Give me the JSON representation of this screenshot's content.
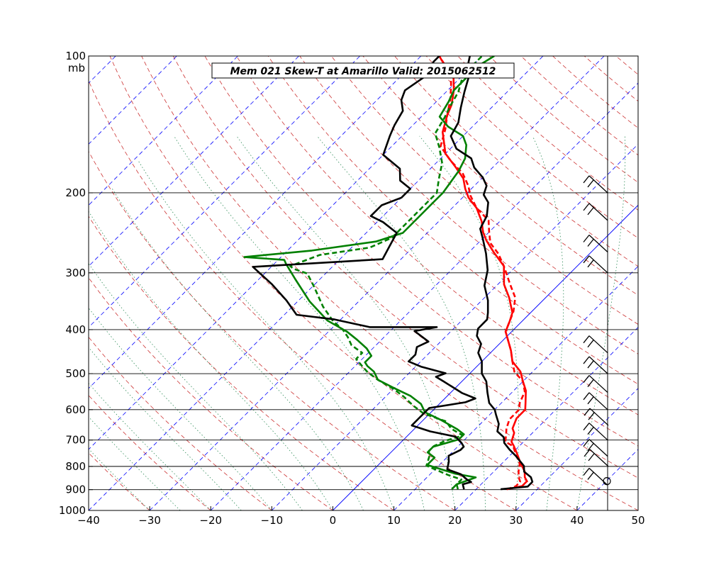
{
  "chart_data": {
    "type": "line",
    "title": "Mem 021  Skew-T at Amarillo   Valid: 2015062512",
    "pressure_unit": "mb",
    "xlabel": "",
    "ylabel": "",
    "x_ticks": [
      "−40",
      "−30",
      "−20",
      "−10",
      "0",
      "10",
      "20",
      "30",
      "40",
      "50"
    ],
    "y_ticks": [
      {
        "p": 100,
        "label": "100"
      },
      {
        "p": 200,
        "label": "200"
      },
      {
        "p": 300,
        "label": "300"
      },
      {
        "p": 400,
        "label": "400"
      },
      {
        "p": 500,
        "label": "500"
      },
      {
        "p": 600,
        "label": "600"
      },
      {
        "p": 700,
        "label": "700"
      },
      {
        "p": 800,
        "label": "800"
      },
      {
        "p": 900,
        "label": "900"
      },
      {
        "p": 1000,
        "label": "1000"
      }
    ],
    "xlim": [
      -40,
      50
    ],
    "ylim_pressure": [
      1000,
      100
    ],
    "y_scale": "log-pressure",
    "skew": "temperature skewed 45 degrees",
    "grid": "horizontal isobars",
    "colors": {
      "temperature": "#ff0000",
      "dewpoint": "#008000",
      "profile": "#000000",
      "dry_adiabat": "#cc3333",
      "moist_adiabat": "#2e8b57",
      "isotherm": "#0000ff",
      "zero_isotherm": "#0000ff"
    },
    "series": [
      {
        "key": "temperature_solid",
        "points": [
          [
            898,
            25
          ],
          [
            884,
            27
          ],
          [
            862,
            27
          ],
          [
            845,
            26
          ],
          [
            820,
            25
          ],
          [
            787,
            23
          ],
          [
            752,
            21
          ],
          [
            720,
            19
          ],
          [
            706,
            18
          ],
          [
            675,
            17
          ],
          [
            660,
            16
          ],
          [
            627,
            15
          ],
          [
            600,
            15
          ],
          [
            581,
            14
          ],
          [
            545,
            12
          ],
          [
            520,
            10
          ],
          [
            495,
            8
          ],
          [
            470,
            5
          ],
          [
            445,
            3
          ],
          [
            424,
            1
          ],
          [
            404,
            -1
          ],
          [
            384,
            -2
          ],
          [
            367,
            -3
          ],
          [
            340,
            -6
          ],
          [
            318,
            -9
          ],
          [
            290,
            -12
          ],
          [
            270,
            -16
          ],
          [
            255,
            -19
          ],
          [
            244,
            -21
          ],
          [
            231,
            -23
          ],
          [
            216,
            -26
          ],
          [
            205,
            -29
          ],
          [
            196,
            -31
          ],
          [
            186,
            -33
          ],
          [
            176,
            -36
          ],
          [
            164,
            -40
          ],
          [
            147,
            -44
          ],
          [
            135,
            -46
          ],
          [
            128,
            -47
          ],
          [
            119,
            -49
          ],
          [
            112,
            -51
          ],
          [
            102,
            -56
          ],
          [
            100,
            -57
          ]
        ]
      },
      {
        "key": "temperature_dashed",
        "points": [
          [
            898,
            25
          ],
          [
            885,
            26
          ],
          [
            865,
            26
          ],
          [
            845,
            25
          ],
          [
            820,
            24
          ],
          [
            790,
            23
          ],
          [
            756,
            21
          ],
          [
            722,
            19
          ],
          [
            706,
            17
          ],
          [
            682,
            16
          ],
          [
            660,
            15
          ],
          [
            630,
            14
          ],
          [
            600,
            14
          ],
          [
            580,
            13
          ],
          [
            548,
            12
          ],
          [
            520,
            10
          ],
          [
            495,
            7
          ],
          [
            470,
            5
          ],
          [
            445,
            3
          ],
          [
            424,
            1
          ],
          [
            404,
            -1
          ],
          [
            384,
            -2
          ],
          [
            365,
            -3
          ],
          [
            340,
            -5
          ],
          [
            318,
            -8
          ],
          [
            290,
            -12
          ],
          [
            272,
            -15
          ],
          [
            258,
            -18
          ],
          [
            244,
            -20
          ],
          [
            230,
            -22
          ],
          [
            216,
            -26
          ],
          [
            203,
            -29
          ],
          [
            193,
            -31
          ],
          [
            181,
            -34
          ],
          [
            170,
            -38
          ],
          [
            158,
            -42
          ],
          [
            145,
            -44
          ],
          [
            135,
            -46
          ],
          [
            125,
            -48
          ],
          [
            117,
            -50
          ],
          [
            110,
            -52
          ],
          [
            100,
            -57
          ]
        ]
      },
      {
        "key": "dewpoint_solid",
        "points": [
          [
            898,
            16
          ],
          [
            876,
            16
          ],
          [
            846,
            18
          ],
          [
            830,
            14
          ],
          [
            794,
            8
          ],
          [
            765,
            8
          ],
          [
            745,
            6
          ],
          [
            724,
            6
          ],
          [
            698,
            9
          ],
          [
            680,
            9
          ],
          [
            662,
            7
          ],
          [
            633,
            3
          ],
          [
            608,
            -1
          ],
          [
            583,
            -3
          ],
          [
            560,
            -6
          ],
          [
            538,
            -10
          ],
          [
            516,
            -14
          ],
          [
            495,
            -16
          ],
          [
            481,
            -18
          ],
          [
            472,
            -19
          ],
          [
            457,
            -19
          ],
          [
            440,
            -21
          ],
          [
            421,
            -24
          ],
          [
            404,
            -27
          ],
          [
            382,
            -32
          ],
          [
            347,
            -38
          ],
          [
            310,
            -44
          ],
          [
            287,
            -48
          ],
          [
            281,
            -49
          ],
          [
            277,
            -56
          ],
          [
            268,
            -46
          ],
          [
            256,
            -37
          ],
          [
            245,
            -34
          ],
          [
            226,
            -34
          ],
          [
            210,
            -34
          ],
          [
            200,
            -34
          ],
          [
            179,
            -35
          ],
          [
            168,
            -36
          ],
          [
            157,
            -38
          ],
          [
            150,
            -40
          ],
          [
            143,
            -44
          ],
          [
            136,
            -47
          ],
          [
            126,
            -48
          ],
          [
            119,
            -49
          ],
          [
            111,
            -49
          ],
          [
            105,
            -49
          ],
          [
            100,
            -48
          ]
        ]
      },
      {
        "key": "dewpoint_dashed",
        "points": [
          [
            898,
            17
          ],
          [
            876,
            16
          ],
          [
            855,
            16
          ],
          [
            835,
            13
          ],
          [
            797,
            8
          ],
          [
            762,
            7
          ],
          [
            740,
            6
          ],
          [
            722,
            6
          ],
          [
            703,
            7
          ],
          [
            684,
            9
          ],
          [
            661,
            6
          ],
          [
            637,
            4
          ],
          [
            612,
            -1
          ],
          [
            588,
            -4
          ],
          [
            562,
            -7
          ],
          [
            540,
            -10
          ],
          [
            516,
            -14
          ],
          [
            496,
            -17
          ],
          [
            480,
            -19
          ],
          [
            464,
            -21
          ],
          [
            450,
            -21
          ],
          [
            433,
            -24
          ],
          [
            415,
            -26
          ],
          [
            400,
            -28
          ],
          [
            383,
            -31
          ],
          [
            356,
            -35
          ],
          [
            320,
            -40
          ],
          [
            301,
            -43
          ],
          [
            294,
            -46
          ],
          [
            290,
            -47
          ],
          [
            274,
            -44
          ],
          [
            264,
            -37
          ],
          [
            251,
            -35
          ],
          [
            226,
            -35
          ],
          [
            210,
            -35
          ],
          [
            200,
            -35
          ],
          [
            186,
            -37
          ],
          [
            172,
            -39
          ],
          [
            159,
            -42
          ],
          [
            148,
            -45
          ],
          [
            137,
            -46
          ],
          [
            129,
            -47
          ],
          [
            120,
            -48
          ],
          [
            110,
            -50
          ],
          [
            100,
            -50
          ]
        ]
      },
      {
        "key": "profile_black",
        "points": [
          [
            898,
            24
          ],
          [
            886,
            28
          ],
          [
            865,
            28
          ],
          [
            845,
            27
          ],
          [
            822,
            25
          ],
          [
            798,
            24
          ],
          [
            758,
            21
          ],
          [
            735,
            19
          ],
          [
            710,
            17
          ],
          [
            690,
            16
          ],
          [
            670,
            14
          ],
          [
            645,
            13
          ],
          [
            615,
            11
          ],
          [
            600,
            10
          ],
          [
            580,
            8
          ],
          [
            550,
            6
          ],
          [
            520,
            4
          ],
          [
            500,
            2
          ],
          [
            470,
            0
          ],
          [
            450,
            -2
          ],
          [
            430,
            -3
          ],
          [
            413,
            -5
          ],
          [
            398,
            -6
          ],
          [
            380,
            -6
          ],
          [
            367,
            -7
          ],
          [
            345,
            -9
          ],
          [
            320,
            -12
          ],
          [
            296,
            -14
          ],
          [
            272,
            -17
          ],
          [
            252,
            -20
          ],
          [
            240,
            -22
          ],
          [
            225,
            -23
          ],
          [
            210,
            -25
          ],
          [
            202,
            -27
          ],
          [
            193,
            -28
          ],
          [
            185,
            -30
          ],
          [
            176,
            -33
          ],
          [
            168,
            -35
          ],
          [
            160,
            -39
          ],
          [
            150,
            -42
          ],
          [
            140,
            -43
          ],
          [
            130,
            -45
          ],
          [
            120,
            -47
          ],
          [
            110,
            -49
          ],
          [
            104,
            -51
          ],
          [
            100,
            -52
          ]
        ]
      },
      {
        "key": "profile_black_left",
        "points": [
          [
            898,
            18
          ],
          [
            876,
            17
          ],
          [
            866,
            18
          ],
          [
            856,
            17
          ],
          [
            832,
            15
          ],
          [
            812,
            12
          ],
          [
            781,
            11
          ],
          [
            758,
            10
          ],
          [
            736,
            11
          ],
          [
            724,
            11
          ],
          [
            710,
            10
          ],
          [
            688,
            8
          ],
          [
            670,
            3
          ],
          [
            650,
            -1
          ],
          [
            627,
            -1
          ],
          [
            606,
            -1
          ],
          [
            595,
            -1
          ],
          [
            578,
            4
          ],
          [
            567,
            5
          ],
          [
            552,
            2
          ],
          [
            520,
            -3
          ],
          [
            508,
            -5
          ],
          [
            499,
            -4
          ],
          [
            483,
            -9
          ],
          [
            470,
            -12
          ],
          [
            454,
            -12
          ],
          [
            437,
            -13
          ],
          [
            425,
            -12
          ],
          [
            403,
            -16
          ],
          [
            395,
            -13
          ],
          [
            395,
            -24
          ],
          [
            380,
            -31
          ],
          [
            371,
            -38
          ],
          [
            345,
            -42
          ],
          [
            318,
            -47
          ],
          [
            291,
            -53
          ],
          [
            280,
            -33
          ],
          [
            262,
            -34
          ],
          [
            245,
            -35
          ],
          [
            232,
            -39
          ],
          [
            225,
            -42
          ],
          [
            213,
            -42
          ],
          [
            205,
            -40
          ],
          [
            196,
            -40
          ],
          [
            188,
            -43
          ],
          [
            177,
            -45
          ],
          [
            165,
            -50
          ],
          [
            150,
            -52
          ],
          [
            142,
            -53
          ],
          [
            132,
            -54
          ],
          [
            125,
            -56
          ],
          [
            119,
            -57
          ],
          [
            111,
            -56
          ],
          [
            103,
            -57
          ],
          [
            100,
            -57
          ]
        ]
      }
    ]
  }
}
